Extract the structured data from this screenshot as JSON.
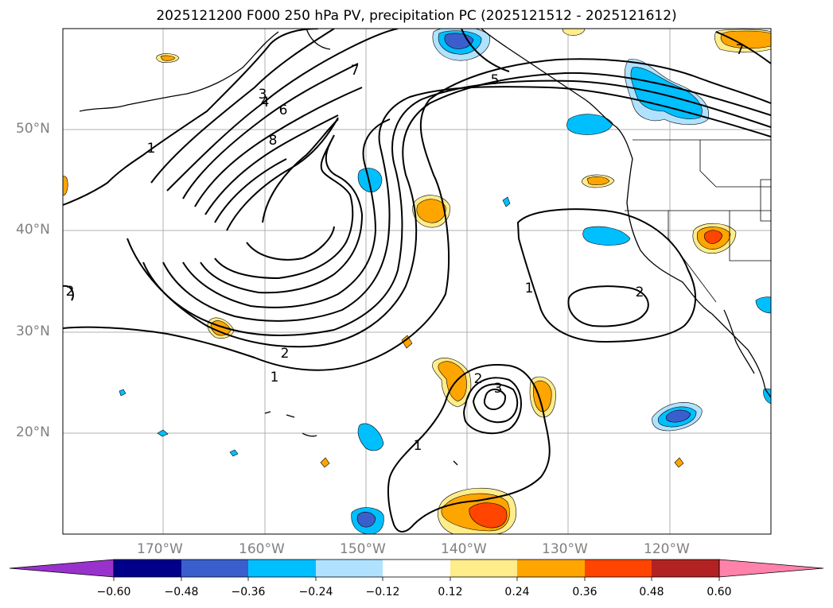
{
  "title": "2025121200 F000 250 hPa PV, precipitation PC (2025121512 - 2025121612)",
  "map": {
    "lon_range": [
      -180,
      -110
    ],
    "lat_range": [
      10,
      60
    ],
    "lat_ticks": [
      "50°N",
      "40°N",
      "30°N",
      "20°N"
    ],
    "lon_ticks": [
      "170°W",
      "160°W",
      "150°W",
      "140°W",
      "130°W",
      "120°W"
    ],
    "contour_labels": [
      "1",
      "2",
      "3",
      "4",
      "5",
      "6",
      "7",
      "8",
      "1",
      "2",
      "3",
      "1",
      "2",
      "1",
      "2",
      "7"
    ]
  },
  "colorbar": {
    "ticks": [
      "−0.60",
      "−0.48",
      "−0.36",
      "−0.24",
      "−0.12",
      "0.12",
      "0.24",
      "0.36",
      "0.48",
      "0.60"
    ],
    "colors": [
      "#9932cc",
      "#00008b",
      "#3a5fcd",
      "#00bfff",
      "#b0e2ff",
      "#ffffff",
      "#ffec8b",
      "#ffa500",
      "#ff4500",
      "#b22222",
      "#ff82ab"
    ]
  }
}
